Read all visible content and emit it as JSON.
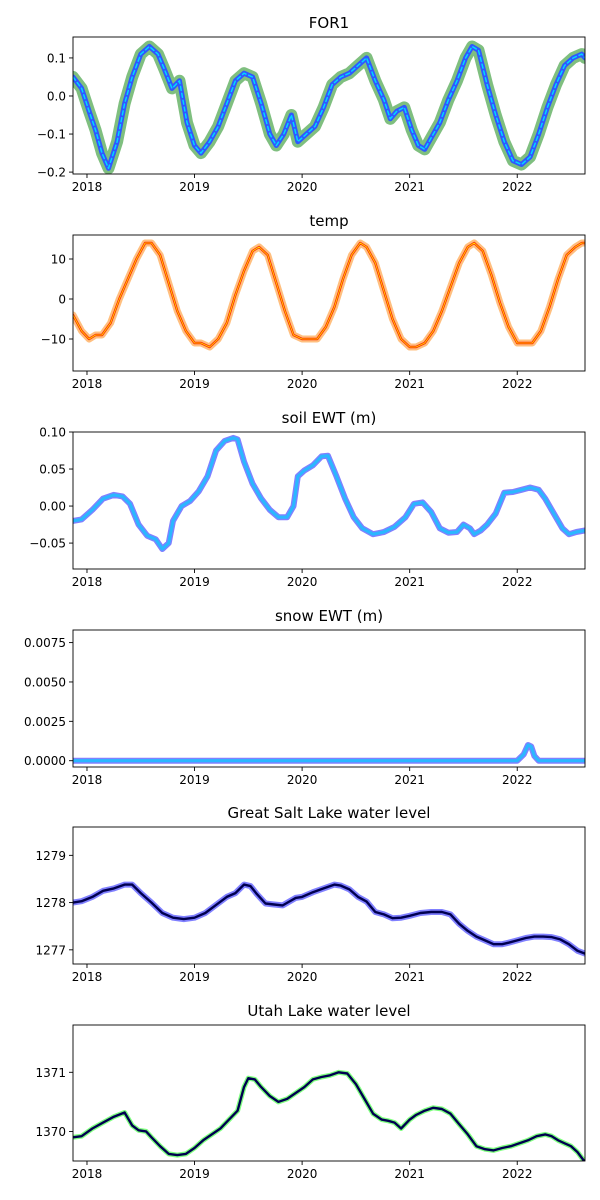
{
  "chart_data": [
    {
      "type": "line",
      "title": "FOR1",
      "xlim": [
        2017.87,
        2022.63
      ],
      "ylim": [
        -0.205,
        0.155
      ],
      "x_ticks": [
        2018,
        2019,
        2020,
        2021,
        2022
      ],
      "y_ticks": [
        -0.2,
        -0.1,
        0.0,
        0.1
      ],
      "y_tick_labels": [
        "−0.2",
        "−0.1",
        "0.0",
        "0.1"
      ],
      "series_colors": [
        "#7fbf7f",
        "#2f57ff",
        "#00d7ff"
      ],
      "x": [
        2017.87,
        2017.95,
        2018.02,
        2018.08,
        2018.14,
        2018.2,
        2018.28,
        2018.35,
        2018.42,
        2018.5,
        2018.58,
        2018.66,
        2018.72,
        2018.79,
        2018.86,
        2018.93,
        2019.0,
        2019.06,
        2019.14,
        2019.22,
        2019.3,
        2019.38,
        2019.46,
        2019.54,
        2019.62,
        2019.7,
        2019.76,
        2019.83,
        2019.9,
        2019.96,
        2020.04,
        2020.12,
        2020.2,
        2020.28,
        2020.36,
        2020.44,
        2020.52,
        2020.6,
        2020.68,
        2020.76,
        2020.82,
        2020.88,
        2020.95,
        2021.02,
        2021.08,
        2021.14,
        2021.2,
        2021.28,
        2021.36,
        2021.44,
        2021.52,
        2021.58,
        2021.64,
        2021.72,
        2021.8,
        2021.88,
        2021.96,
        2022.04,
        2022.12,
        2022.2,
        2022.28,
        2022.36,
        2022.44,
        2022.52,
        2022.6,
        2022.63
      ],
      "y": [
        0.05,
        0.02,
        -0.04,
        -0.09,
        -0.15,
        -0.19,
        -0.12,
        -0.02,
        0.05,
        0.11,
        0.13,
        0.11,
        0.07,
        0.02,
        0.04,
        -0.07,
        -0.13,
        -0.15,
        -0.12,
        -0.08,
        -0.02,
        0.04,
        0.06,
        0.05,
        -0.02,
        -0.1,
        -0.13,
        -0.1,
        -0.05,
        -0.12,
        -0.1,
        -0.08,
        -0.03,
        0.03,
        0.05,
        0.06,
        0.08,
        0.1,
        0.04,
        -0.01,
        -0.06,
        -0.04,
        -0.03,
        -0.09,
        -0.13,
        -0.14,
        -0.11,
        -0.07,
        -0.01,
        0.04,
        0.1,
        0.13,
        0.12,
        0.03,
        -0.05,
        -0.12,
        -0.17,
        -0.18,
        -0.16,
        -0.1,
        -0.03,
        0.03,
        0.08,
        0.1,
        0.11,
        0.1
      ]
    },
    {
      "type": "line",
      "title": "temp",
      "xlim": [
        2017.87,
        2022.63
      ],
      "ylim": [
        -18,
        16
      ],
      "x_ticks": [
        2018,
        2019,
        2020,
        2021,
        2022
      ],
      "y_ticks": [
        -10,
        0,
        10
      ],
      "y_tick_labels": [
        "−10",
        "0",
        "10"
      ],
      "series_colors": [
        "#ffbf7f",
        "#ff2a00",
        "#ffe000"
      ],
      "x": [
        2017.87,
        2017.95,
        2018.02,
        2018.08,
        2018.14,
        2018.22,
        2018.3,
        2018.38,
        2018.46,
        2018.54,
        2018.6,
        2018.68,
        2018.76,
        2018.84,
        2018.92,
        2019.0,
        2019.06,
        2019.14,
        2019.22,
        2019.3,
        2019.38,
        2019.46,
        2019.54,
        2019.6,
        2019.68,
        2019.76,
        2019.84,
        2019.92,
        2020.0,
        2020.06,
        2020.14,
        2020.22,
        2020.3,
        2020.38,
        2020.46,
        2020.54,
        2020.6,
        2020.68,
        2020.76,
        2020.84,
        2020.92,
        2021.0,
        2021.06,
        2021.14,
        2021.22,
        2021.3,
        2021.38,
        2021.46,
        2021.54,
        2021.6,
        2021.68,
        2021.76,
        2021.84,
        2021.92,
        2022.0,
        2022.06,
        2022.14,
        2022.22,
        2022.3,
        2022.38,
        2022.46,
        2022.54,
        2022.6,
        2022.63
      ],
      "y": [
        -4,
        -8,
        -10,
        -9,
        -9,
        -6,
        0,
        5,
        10,
        14,
        14,
        11,
        4,
        -3,
        -8,
        -11,
        -11,
        -12,
        -10,
        -6,
        1,
        7,
        12,
        13,
        11,
        4,
        -3,
        -9,
        -10,
        -10,
        -10,
        -7,
        -2,
        5,
        11,
        14,
        13,
        9,
        2,
        -5,
        -10,
        -12,
        -12,
        -11,
        -8,
        -3,
        3,
        9,
        13,
        14,
        12,
        6,
        -1,
        -7,
        -11,
        -11,
        -11,
        -8,
        -2,
        5,
        11,
        13,
        14,
        14
      ]
    },
    {
      "type": "line",
      "title": "soil EWT (m)",
      "xlim": [
        2017.87,
        2022.63
      ],
      "ylim": [
        -0.085,
        0.1
      ],
      "x_ticks": [
        2018,
        2019,
        2020,
        2021,
        2022
      ],
      "y_ticks": [
        -0.05,
        0.0,
        0.05,
        0.1
      ],
      "y_tick_labels": [
        "−0.05",
        "0.00",
        "0.05",
        "0.10"
      ],
      "series_colors": [
        "#8080ff",
        "#2ab7ff"
      ],
      "x": [
        2017.87,
        2017.95,
        2018.05,
        2018.15,
        2018.25,
        2018.33,
        2018.4,
        2018.48,
        2018.56,
        2018.64,
        2018.7,
        2018.76,
        2018.8,
        2018.88,
        2018.96,
        2019.04,
        2019.12,
        2019.2,
        2019.28,
        2019.36,
        2019.4,
        2019.46,
        2019.54,
        2019.62,
        2019.7,
        2019.78,
        2019.86,
        2019.92,
        2019.96,
        2020.02,
        2020.1,
        2020.18,
        2020.24,
        2020.32,
        2020.4,
        2020.48,
        2020.56,
        2020.66,
        2020.76,
        2020.86,
        2020.96,
        2021.04,
        2021.12,
        2021.2,
        2021.28,
        2021.36,
        2021.44,
        2021.5,
        2021.56,
        2021.6,
        2021.66,
        2021.72,
        2021.8,
        2021.88,
        2021.96,
        2022.04,
        2022.12,
        2022.2,
        2022.26,
        2022.34,
        2022.42,
        2022.48,
        2022.55,
        2022.63
      ],
      "y": [
        -0.02,
        -0.018,
        -0.005,
        0.01,
        0.015,
        0.013,
        0.003,
        -0.025,
        -0.04,
        -0.045,
        -0.058,
        -0.05,
        -0.02,
        0.0,
        0.007,
        0.02,
        0.04,
        0.075,
        0.088,
        0.092,
        0.09,
        0.06,
        0.03,
        0.01,
        -0.005,
        -0.015,
        -0.015,
        0.0,
        0.04,
        0.048,
        0.055,
        0.067,
        0.068,
        0.04,
        0.01,
        -0.015,
        -0.03,
        -0.038,
        -0.035,
        -0.028,
        -0.015,
        0.003,
        0.005,
        -0.008,
        -0.03,
        -0.036,
        -0.035,
        -0.025,
        -0.03,
        -0.038,
        -0.033,
        -0.025,
        -0.01,
        0.018,
        0.019,
        0.022,
        0.025,
        0.022,
        0.01,
        -0.01,
        -0.03,
        -0.038,
        -0.035,
        -0.033
      ]
    },
    {
      "type": "line",
      "title": "snow EWT (m)",
      "xlim": [
        2017.87,
        2022.63
      ],
      "ylim": [
        -0.0004,
        0.0083
      ],
      "x_ticks": [
        2018,
        2019,
        2020,
        2021,
        2022
      ],
      "y_ticks": [
        0.0,
        0.0025,
        0.005,
        0.0075
      ],
      "y_tick_labels": [
        "0.0000",
        "0.0025",
        "0.0050",
        "0.0075"
      ],
      "series_colors": [
        "#8080ff",
        "#2ab7ff"
      ],
      "x": [
        2017.87,
        2022.0,
        2022.06,
        2022.1,
        2022.13,
        2022.16,
        2022.2,
        2022.63
      ],
      "y": [
        0.0,
        0.0,
        0.0004,
        0.001,
        0.0009,
        0.0003,
        0.0,
        0.0
      ]
    },
    {
      "type": "line",
      "title": "Great Salt Lake water level",
      "xlim": [
        2017.87,
        2022.63
      ],
      "ylim": [
        1276.7,
        1279.6
      ],
      "x_ticks": [
        2018,
        2019,
        2020,
        2021,
        2022
      ],
      "y_ticks": [
        1277,
        1278,
        1279
      ],
      "y_tick_labels": [
        "1277",
        "1278",
        "1279"
      ],
      "series_colors": [
        "#8080ff",
        "#000050"
      ],
      "x": [
        2017.87,
        2017.95,
        2018.05,
        2018.15,
        2018.25,
        2018.35,
        2018.42,
        2018.5,
        2018.6,
        2018.7,
        2018.8,
        2018.9,
        2019.0,
        2019.1,
        2019.2,
        2019.3,
        2019.38,
        2019.46,
        2019.52,
        2019.58,
        2019.66,
        2019.74,
        2019.82,
        2019.88,
        2019.94,
        2020.0,
        2020.1,
        2020.2,
        2020.3,
        2020.36,
        2020.44,
        2020.52,
        2020.6,
        2020.68,
        2020.76,
        2020.84,
        2020.92,
        2021.0,
        2021.1,
        2021.2,
        2021.3,
        2021.38,
        2021.46,
        2021.54,
        2021.62,
        2021.7,
        2021.78,
        2021.86,
        2021.92,
        2022.0,
        2022.08,
        2022.16,
        2022.24,
        2022.32,
        2022.4,
        2022.48,
        2022.56,
        2022.63
      ],
      "y": [
        1278.0,
        1278.03,
        1278.12,
        1278.25,
        1278.3,
        1278.38,
        1278.38,
        1278.2,
        1278.0,
        1277.78,
        1277.68,
        1277.65,
        1277.68,
        1277.78,
        1277.95,
        1278.12,
        1278.2,
        1278.38,
        1278.35,
        1278.18,
        1277.98,
        1277.96,
        1277.94,
        1278.02,
        1278.1,
        1278.12,
        1278.22,
        1278.3,
        1278.38,
        1278.36,
        1278.28,
        1278.12,
        1278.02,
        1277.8,
        1277.75,
        1277.67,
        1277.68,
        1277.72,
        1277.78,
        1277.8,
        1277.8,
        1277.75,
        1277.55,
        1277.4,
        1277.28,
        1277.2,
        1277.12,
        1277.12,
        1277.15,
        1277.2,
        1277.25,
        1277.28,
        1277.28,
        1277.27,
        1277.22,
        1277.12,
        1276.98,
        1276.92
      ]
    },
    {
      "type": "line",
      "title": "Utah Lake water level",
      "xlim": [
        2017.87,
        2022.63
      ],
      "ylim": [
        1369.5,
        1371.8
      ],
      "x_ticks": [
        2018,
        2019,
        2020,
        2021,
        2022
      ],
      "y_ticks": [
        1370,
        1371
      ],
      "y_tick_labels": [
        "1370",
        "1371"
      ],
      "series_colors": [
        "#7fff7f",
        "#000050"
      ],
      "x": [
        2017.87,
        2017.95,
        2018.05,
        2018.15,
        2018.25,
        2018.35,
        2018.42,
        2018.48,
        2018.55,
        2018.6,
        2018.68,
        2018.76,
        2018.84,
        2018.92,
        2019.0,
        2019.08,
        2019.16,
        2019.24,
        2019.32,
        2019.4,
        2019.46,
        2019.5,
        2019.56,
        2019.62,
        2019.7,
        2019.78,
        2019.86,
        2019.94,
        2020.02,
        2020.1,
        2020.18,
        2020.26,
        2020.34,
        2020.42,
        2020.5,
        2020.58,
        2020.66,
        2020.74,
        2020.8,
        2020.86,
        2020.92,
        2021.0,
        2021.06,
        2021.14,
        2021.22,
        2021.3,
        2021.38,
        2021.46,
        2021.54,
        2021.62,
        2021.7,
        2021.78,
        2021.86,
        2021.94,
        2022.02,
        2022.1,
        2022.18,
        2022.26,
        2022.32,
        2022.38,
        2022.44,
        2022.5,
        2022.56,
        2022.63
      ],
      "y": [
        1369.9,
        1369.92,
        1370.05,
        1370.15,
        1370.25,
        1370.32,
        1370.1,
        1370.02,
        1370.0,
        1369.9,
        1369.75,
        1369.62,
        1369.6,
        1369.62,
        1369.72,
        1369.85,
        1369.95,
        1370.05,
        1370.2,
        1370.35,
        1370.75,
        1370.9,
        1370.88,
        1370.75,
        1370.6,
        1370.5,
        1370.55,
        1370.65,
        1370.75,
        1370.88,
        1370.92,
        1370.95,
        1371.0,
        1370.98,
        1370.8,
        1370.55,
        1370.3,
        1370.2,
        1370.18,
        1370.15,
        1370.05,
        1370.2,
        1370.28,
        1370.35,
        1370.4,
        1370.38,
        1370.3,
        1370.12,
        1369.95,
        1369.75,
        1369.7,
        1369.68,
        1369.72,
        1369.75,
        1369.8,
        1369.85,
        1369.92,
        1369.95,
        1369.92,
        1369.85,
        1369.8,
        1369.75,
        1369.65,
        1369.48
      ]
    }
  ]
}
